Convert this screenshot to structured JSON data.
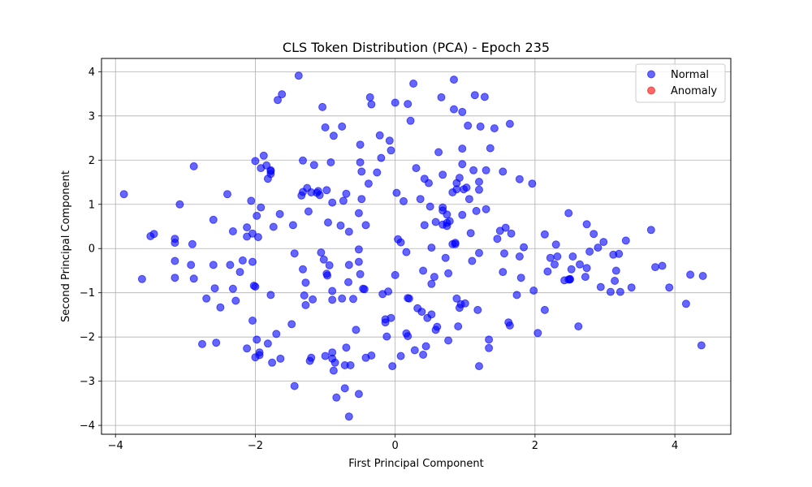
{
  "chart_data": {
    "type": "scatter",
    "title": "CLS Token Distribution (PCA) - Epoch 235",
    "xlabel": "First Principal Component",
    "ylabel": "Second Principal Component",
    "xlim": [
      -4.2,
      4.8
    ],
    "ylim": [
      -4.2,
      4.3
    ],
    "xticks": [
      -4,
      -2,
      0,
      2,
      4
    ],
    "yticks": [
      -4,
      -3,
      -2,
      -1,
      0,
      1,
      2,
      3,
      4
    ],
    "xtick_labels": [
      "−4",
      "−2",
      "0",
      "2",
      "4"
    ],
    "ytick_labels": [
      "−4",
      "−3",
      "−2",
      "−1",
      "0",
      "1",
      "2",
      "3",
      "4"
    ],
    "grid": true,
    "legend_position": "top-right",
    "series": [
      {
        "name": "Normal",
        "color": "#0000ff",
        "points": [
          [
            -3.88,
            1.23
          ],
          [
            -3.62,
            -0.69
          ],
          [
            -3.5,
            0.28
          ],
          [
            -3.45,
            0.33
          ],
          [
            -3.15,
            0.22
          ],
          [
            -3.15,
            0.13
          ],
          [
            -3.15,
            -0.28
          ],
          [
            -3.15,
            -0.66
          ],
          [
            -3.08,
            1.0
          ],
          [
            -2.9,
            0.1
          ],
          [
            -2.92,
            -0.37
          ],
          [
            -2.88,
            -0.68
          ],
          [
            -2.88,
            1.86
          ],
          [
            -2.76,
            -2.16
          ],
          [
            -2.7,
            -1.13
          ],
          [
            -2.6,
            0.65
          ],
          [
            -2.6,
            -0.37
          ],
          [
            -2.58,
            -0.9
          ],
          [
            -2.56,
            -2.13
          ],
          [
            -2.5,
            -1.33
          ],
          [
            -2.4,
            1.23
          ],
          [
            -2.36,
            -0.37
          ],
          [
            -2.32,
            0.39
          ],
          [
            -2.32,
            -0.91
          ],
          [
            -2.28,
            -1.18
          ],
          [
            -2.22,
            -0.53
          ],
          [
            -2.18,
            -0.27
          ],
          [
            -2.12,
            0.48
          ],
          [
            -2.12,
            -2.26
          ],
          [
            -2.12,
            0.27
          ],
          [
            -2.06,
            1.08
          ],
          [
            -2.04,
            0.34
          ],
          [
            -2.04,
            -1.63
          ],
          [
            -2.04,
            -0.3
          ],
          [
            -2.02,
            -0.84
          ],
          [
            -2.0,
            -0.86
          ],
          [
            -2.0,
            -2.46
          ],
          [
            -2.0,
            1.98
          ],
          [
            -1.98,
            0.74
          ],
          [
            -1.98,
            -2.06
          ],
          [
            -1.96,
            0.26
          ],
          [
            -1.94,
            -2.41
          ],
          [
            -1.94,
            -2.35
          ],
          [
            -1.92,
            0.93
          ],
          [
            -1.92,
            1.82
          ],
          [
            -1.88,
            2.1
          ],
          [
            -1.84,
            1.88
          ],
          [
            -1.82,
            -2.15
          ],
          [
            -1.82,
            1.58
          ],
          [
            -1.78,
            1.75
          ],
          [
            -1.78,
            1.69
          ],
          [
            -1.78,
            1.77
          ],
          [
            -1.78,
            -1.05
          ],
          [
            -1.76,
            -2.58
          ],
          [
            -1.74,
            0.49
          ],
          [
            -1.7,
            -1.93
          ],
          [
            -1.68,
            3.36
          ],
          [
            -1.65,
            0.78
          ],
          [
            -1.64,
            -2.49
          ],
          [
            -1.62,
            3.49
          ],
          [
            -1.48,
            -1.71
          ],
          [
            -1.46,
            0.53
          ],
          [
            -1.44,
            -0.11
          ],
          [
            -1.44,
            -3.11
          ],
          [
            -1.38,
            3.91
          ],
          [
            -1.34,
            1.2
          ],
          [
            -1.32,
            1.28
          ],
          [
            -1.32,
            1.99
          ],
          [
            -1.32,
            -0.47
          ],
          [
            -1.3,
            -1.06
          ],
          [
            -1.28,
            -0.77
          ],
          [
            -1.28,
            -1.28
          ],
          [
            -1.26,
            1.37
          ],
          [
            -1.24,
            0.84
          ],
          [
            -1.22,
            -2.54
          ],
          [
            -1.2,
            -2.47
          ],
          [
            -1.2,
            1.27
          ],
          [
            -1.18,
            -1.15
          ],
          [
            -1.16,
            1.89
          ],
          [
            -1.12,
            1.26
          ],
          [
            -1.1,
            1.3
          ],
          [
            -1.08,
            1.21
          ],
          [
            -1.06,
            -0.09
          ],
          [
            -1.04,
            3.2
          ],
          [
            -1.02,
            -0.25
          ],
          [
            -1.0,
            -2.43
          ],
          [
            -1.0,
            2.74
          ],
          [
            -0.98,
            1.32
          ],
          [
            -0.98,
            -0.57
          ],
          [
            -0.97,
            -0.61
          ],
          [
            -0.96,
            0.59
          ],
          [
            -0.94,
            -0.38
          ],
          [
            -0.92,
            1.95
          ],
          [
            -0.9,
            -2.35
          ],
          [
            -0.9,
            -1.16
          ],
          [
            -0.9,
            1.04
          ],
          [
            -0.9,
            -0.96
          ],
          [
            -0.9,
            -2.49
          ],
          [
            -0.88,
            2.55
          ],
          [
            -0.88,
            -2.76
          ],
          [
            -0.86,
            -2.58
          ],
          [
            -0.84,
            -3.37
          ],
          [
            -0.78,
            0.52
          ],
          [
            -0.76,
            2.76
          ],
          [
            -0.76,
            -1.13
          ],
          [
            -0.74,
            1.08
          ],
          [
            -0.72,
            -3.16
          ],
          [
            -0.72,
            -2.64
          ],
          [
            -0.7,
            -2.24
          ],
          [
            -0.7,
            1.24
          ],
          [
            -0.67,
            -0.76
          ],
          [
            -0.66,
            -0.37
          ],
          [
            -0.66,
            0.38
          ],
          [
            -0.66,
            -3.8
          ],
          [
            -0.64,
            -2.64
          ],
          [
            -0.6,
            -1.14
          ],
          [
            -0.56,
            -1.84
          ],
          [
            -0.52,
            -0.02
          ],
          [
            -0.52,
            -0.3
          ],
          [
            -0.52,
            -3.29
          ],
          [
            -0.52,
            0.8
          ],
          [
            -0.5,
            -0.58
          ],
          [
            -0.5,
            2.35
          ],
          [
            -0.5,
            1.95
          ],
          [
            -0.48,
            1.12
          ],
          [
            -0.48,
            1.74
          ],
          [
            -0.46,
            -0.91
          ],
          [
            -0.44,
            -0.92
          ],
          [
            -0.42,
            0.53
          ],
          [
            -0.42,
            -2.47
          ],
          [
            -0.38,
            1.47
          ],
          [
            -0.36,
            3.42
          ],
          [
            -0.34,
            3.26
          ],
          [
            -0.34,
            -2.42
          ],
          [
            -0.26,
            1.72
          ],
          [
            -0.22,
            2.56
          ],
          [
            -0.2,
            2.05
          ],
          [
            -0.18,
            -1.03
          ],
          [
            -0.14,
            -1.67
          ],
          [
            -0.14,
            -1.6
          ],
          [
            -0.12,
            -1.99
          ],
          [
            -0.1,
            -0.97
          ],
          [
            -0.08,
            2.44
          ],
          [
            -0.06,
            -1.57
          ],
          [
            -0.06,
            2.22
          ],
          [
            -0.04,
            -2.66
          ],
          [
            0.0,
            -0.6
          ],
          [
            0.0,
            3.3
          ],
          [
            0.02,
            1.26
          ],
          [
            0.04,
            0.21
          ],
          [
            0.08,
            0.14
          ],
          [
            0.08,
            -2.43
          ],
          [
            0.12,
            1.07
          ],
          [
            0.16,
            -0.08
          ],
          [
            0.16,
            -1.92
          ],
          [
            0.18,
            -1.98
          ],
          [
            0.18,
            3.27
          ],
          [
            0.18,
            -1.12
          ],
          [
            0.2,
            -1.13
          ],
          [
            0.22,
            2.89
          ],
          [
            0.26,
            3.73
          ],
          [
            0.28,
            -2.3
          ],
          [
            0.3,
            1.82
          ],
          [
            0.32,
            -1.35
          ],
          [
            0.36,
            1.12
          ],
          [
            0.38,
            -1.43
          ],
          [
            0.4,
            -2.4
          ],
          [
            0.4,
            -0.5
          ],
          [
            0.42,
            0.53
          ],
          [
            0.42,
            1.58
          ],
          [
            0.44,
            -2.21
          ],
          [
            0.46,
            -1.57
          ],
          [
            0.48,
            1.48
          ],
          [
            0.5,
            0.95
          ],
          [
            0.52,
            -0.8
          ],
          [
            0.52,
            -1.49
          ],
          [
            0.52,
            0.02
          ],
          [
            0.56,
            -0.64
          ],
          [
            0.58,
            0.6
          ],
          [
            0.58,
            -1.84
          ],
          [
            0.6,
            -1.77
          ],
          [
            0.62,
            2.18
          ],
          [
            0.66,
            3.42
          ],
          [
            0.68,
            0.93
          ],
          [
            0.68,
            0.86
          ],
          [
            0.68,
            0.54
          ],
          [
            0.68,
            1.67
          ],
          [
            0.72,
            -0.21
          ],
          [
            0.74,
            0.58
          ],
          [
            0.74,
            0.77
          ],
          [
            0.74,
            0.51
          ],
          [
            0.76,
            -0.56
          ],
          [
            0.76,
            -2.08
          ],
          [
            0.78,
            0.62
          ],
          [
            0.82,
            1.27
          ],
          [
            0.82,
            0.1
          ],
          [
            0.84,
            3.82
          ],
          [
            0.84,
            3.15
          ],
          [
            0.86,
            0.1
          ],
          [
            0.86,
            0.13
          ],
          [
            0.88,
            1.48
          ],
          [
            0.88,
            -1.13
          ],
          [
            0.88,
            1.34
          ],
          [
            0.9,
            -1.76
          ],
          [
            0.92,
            1.6
          ],
          [
            0.92,
            -1.34
          ],
          [
            0.94,
            -1.26
          ],
          [
            0.96,
            3.09
          ],
          [
            0.96,
            2.26
          ],
          [
            0.96,
            1.91
          ],
          [
            0.96,
            0.76
          ],
          [
            0.98,
            1.34
          ],
          [
            1.0,
            -1.24
          ],
          [
            1.02,
            1.38
          ],
          [
            1.04,
            2.78
          ],
          [
            1.06,
            1.12
          ],
          [
            1.08,
            0.35
          ],
          [
            1.1,
            -0.28
          ],
          [
            1.12,
            1.77
          ],
          [
            1.14,
            3.47
          ],
          [
            1.16,
            0.85
          ],
          [
            1.18,
            -1.39
          ],
          [
            1.2,
            1.33
          ],
          [
            1.2,
            -0.1
          ],
          [
            1.2,
            1.51
          ],
          [
            1.2,
            -2.66
          ],
          [
            1.22,
            2.76
          ],
          [
            1.3,
            1.77
          ],
          [
            1.28,
            3.43
          ],
          [
            1.3,
            0.89
          ],
          [
            1.34,
            -2.25
          ],
          [
            1.34,
            -2.06
          ],
          [
            1.36,
            2.27
          ],
          [
            1.42,
            2.72
          ],
          [
            1.46,
            0.22
          ],
          [
            1.5,
            0.4
          ],
          [
            1.54,
            1.74
          ],
          [
            1.54,
            -0.53
          ],
          [
            1.56,
            -0.11
          ],
          [
            1.58,
            0.47
          ],
          [
            1.62,
            -1.67
          ],
          [
            1.64,
            -1.74
          ],
          [
            1.64,
            2.82
          ],
          [
            1.66,
            0.34
          ],
          [
            1.74,
            -1.05
          ],
          [
            1.78,
            1.57
          ],
          [
            1.78,
            -0.18
          ],
          [
            1.8,
            -0.66
          ],
          [
            1.84,
            0.03
          ],
          [
            1.96,
            1.47
          ],
          [
            1.98,
            -0.95
          ],
          [
            2.04,
            -1.91
          ],
          [
            2.14,
            -1.39
          ],
          [
            2.14,
            0.32
          ],
          [
            2.18,
            -0.52
          ],
          [
            2.22,
            -0.21
          ],
          [
            2.3,
            0.09
          ],
          [
            2.28,
            -0.36
          ],
          [
            2.32,
            -0.18
          ],
          [
            2.42,
            -0.72
          ],
          [
            2.48,
            0.8
          ],
          [
            2.48,
            -0.7
          ],
          [
            2.5,
            -0.69
          ],
          [
            2.5,
            -0.7
          ],
          [
            2.52,
            -0.47
          ],
          [
            2.54,
            -0.18
          ],
          [
            2.62,
            -1.76
          ],
          [
            2.64,
            -0.36
          ],
          [
            2.72,
            -0.64
          ],
          [
            2.74,
            -0.44
          ],
          [
            2.74,
            0.55
          ],
          [
            2.78,
            -0.07
          ],
          [
            2.84,
            0.33
          ],
          [
            2.9,
            0.02
          ],
          [
            2.94,
            -0.87
          ],
          [
            2.98,
            0.15
          ],
          [
            3.08,
            -0.98
          ],
          [
            3.12,
            -0.14
          ],
          [
            3.14,
            -0.73
          ],
          [
            3.16,
            -0.5
          ],
          [
            3.22,
            -0.98
          ],
          [
            3.2,
            -0.12
          ],
          [
            3.3,
            0.18
          ],
          [
            3.38,
            -0.88
          ],
          [
            3.66,
            0.42
          ],
          [
            3.72,
            -0.42
          ],
          [
            3.82,
            -0.39
          ],
          [
            3.92,
            -0.88
          ],
          [
            4.16,
            -1.25
          ],
          [
            4.22,
            -0.59
          ],
          [
            4.38,
            -2.19
          ],
          [
            4.4,
            -0.62
          ]
        ]
      },
      {
        "name": "Anomaly",
        "color": "#ff0000",
        "points": []
      }
    ]
  }
}
